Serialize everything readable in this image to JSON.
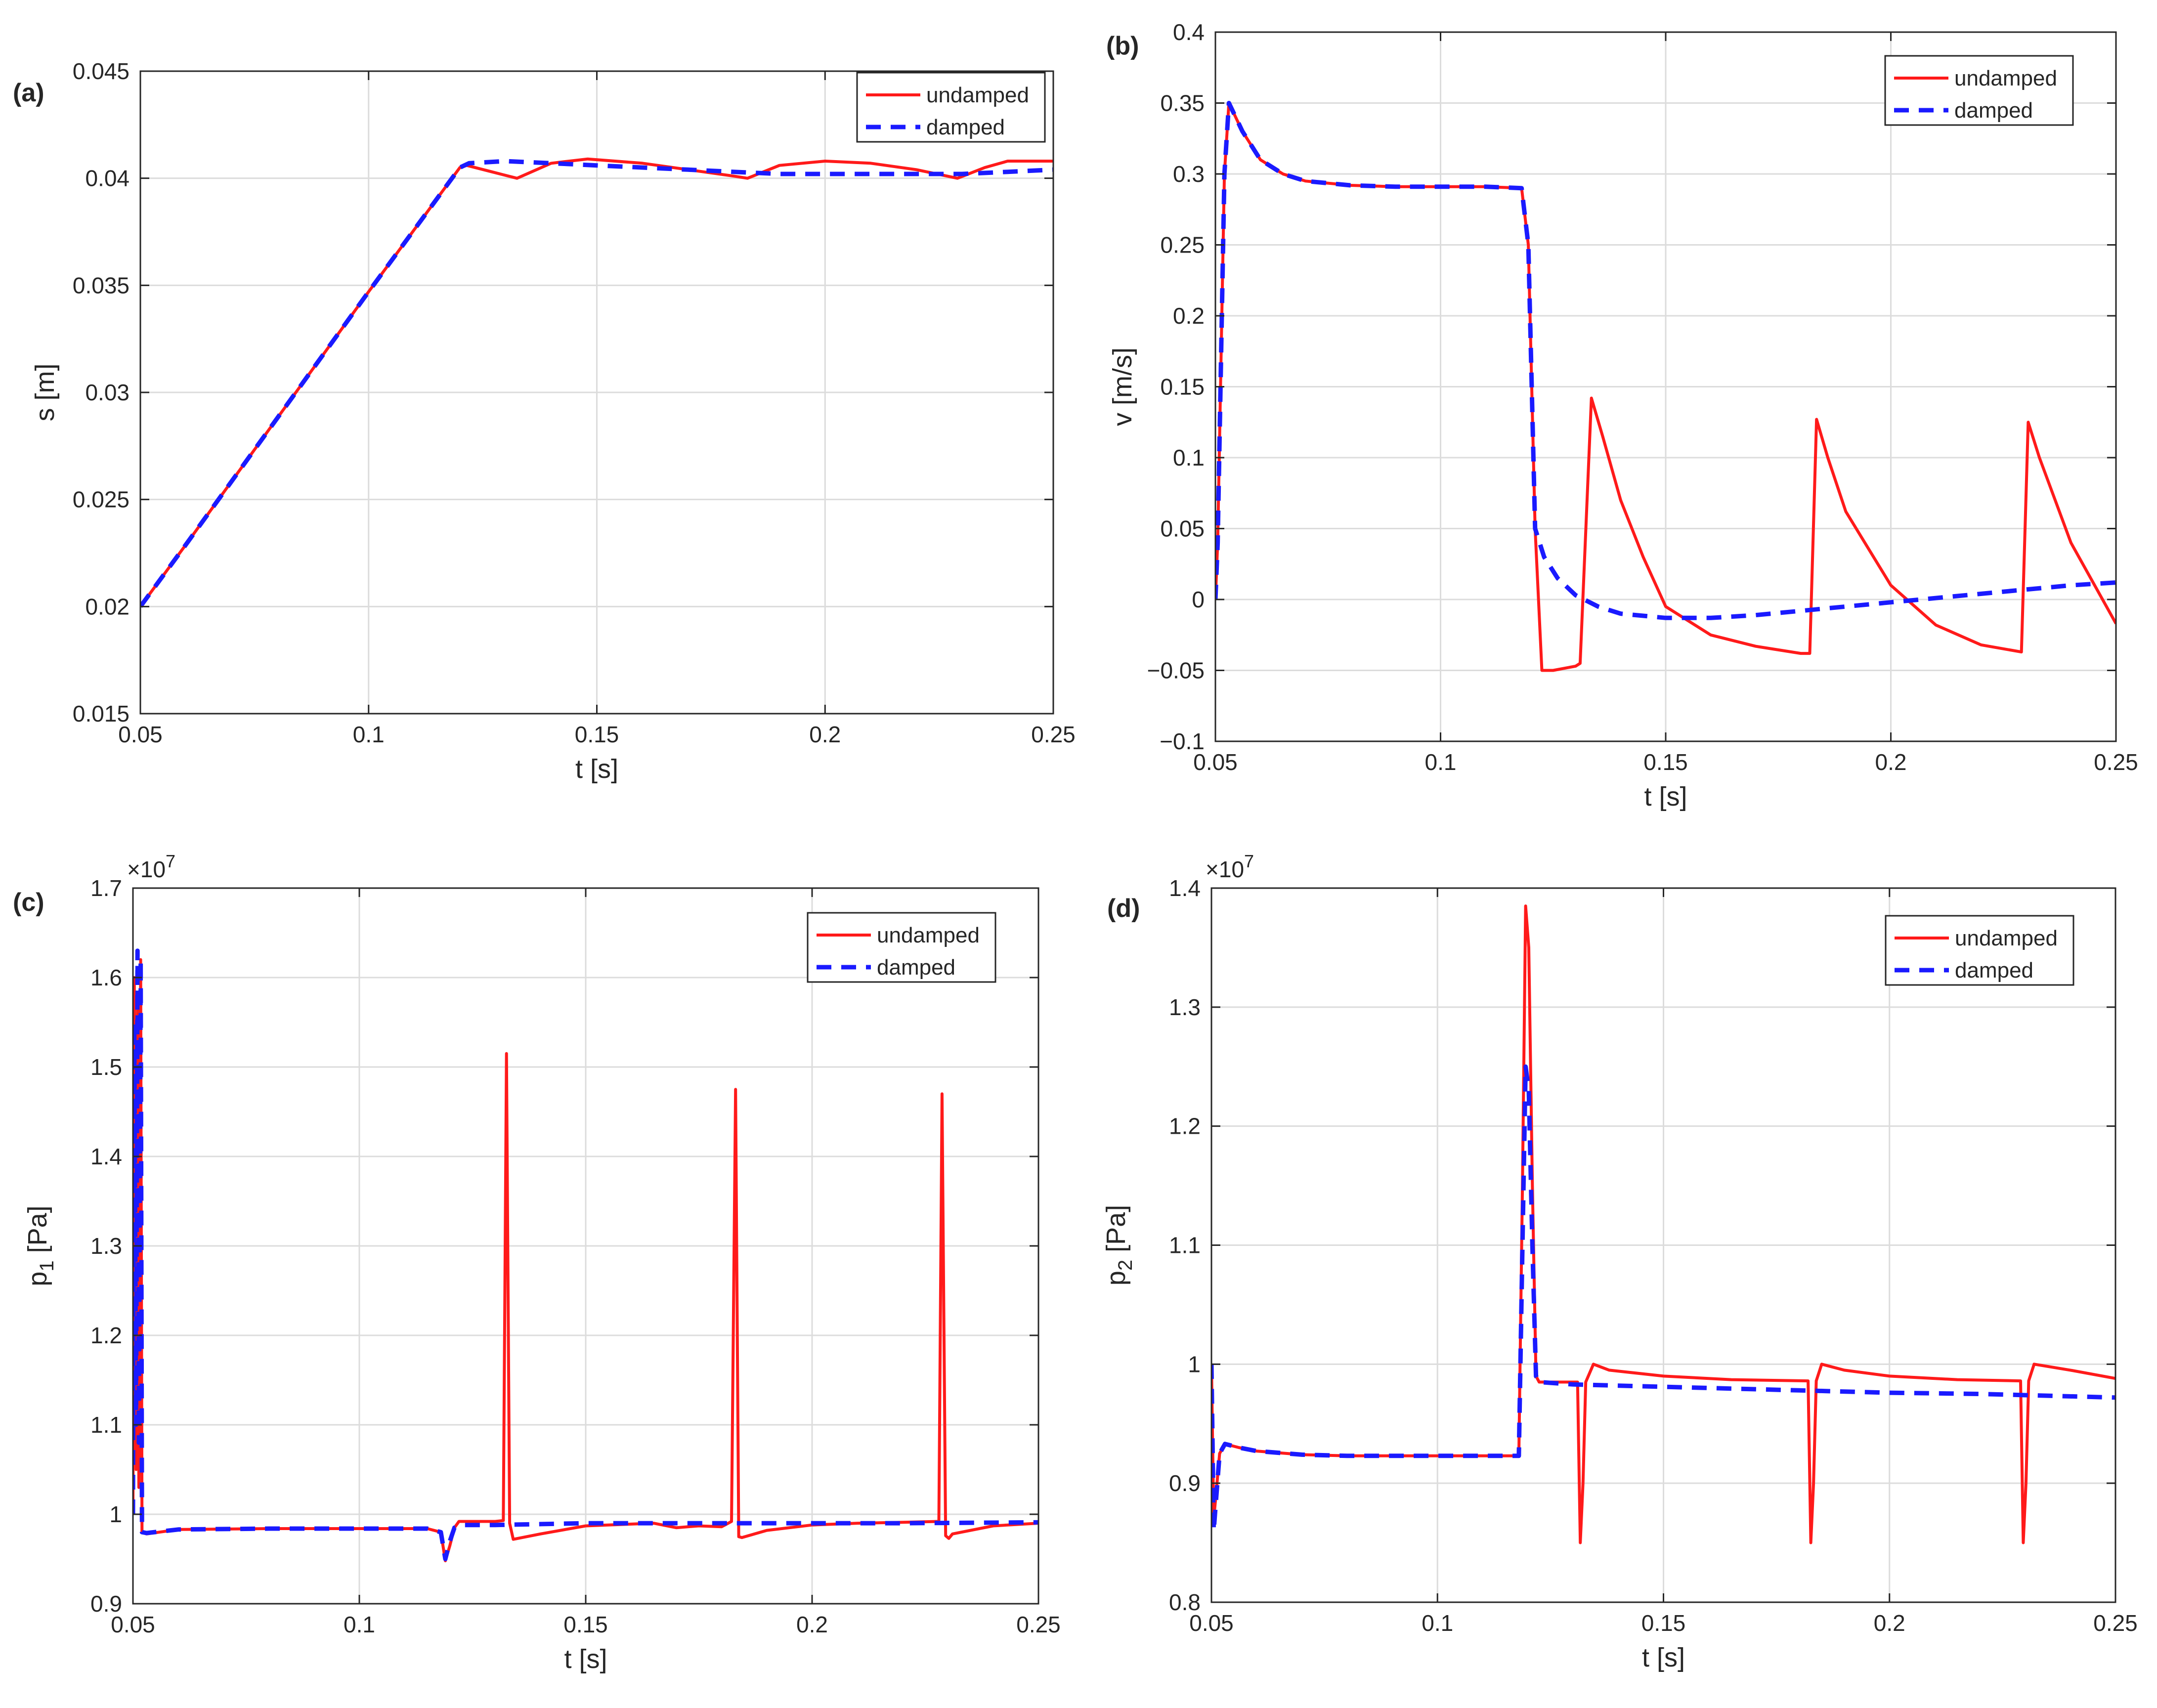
{
  "figure": {
    "colors": {
      "undamped": "#ff1a1a",
      "damped": "#1a1aff",
      "axis": "#262626",
      "grid": "#dcdcdc"
    }
  },
  "chart_data": [
    {
      "id": "a",
      "type": "line",
      "panel_label": "(a)",
      "xlabel": "t [s]",
      "ylabel": "s [m]",
      "xlim": [
        0.05,
        0.25
      ],
      "ylim": [
        0.015,
        0.045
      ],
      "xticks": [
        0.05,
        0.1,
        0.15,
        0.2,
        0.25
      ],
      "xtick_labels": [
        "0.05",
        "0.1",
        "0.15",
        "0.2",
        "0.25"
      ],
      "yticks": [
        0.015,
        0.02,
        0.025,
        0.03,
        0.035,
        0.04,
        0.045
      ],
      "ytick_labels": [
        "0.015",
        "0.02",
        "0.025",
        "0.03",
        "0.035",
        "0.04",
        "0.045"
      ],
      "exponent_label": "",
      "grid": true,
      "legend": [
        "undamped",
        "damped"
      ],
      "series": [
        {
          "name": "undamped",
          "style": "solid",
          "color": "#ff1a1a",
          "x": [
            0.05,
            0.06,
            0.08,
            0.1,
            0.12,
            0.1215,
            0.127,
            0.1325,
            0.14,
            0.148,
            0.16,
            0.17,
            0.18,
            0.183,
            0.19,
            0.2,
            0.21,
            0.22,
            0.229,
            0.235,
            0.24,
            0.25
          ],
          "y": [
            0.02,
            0.0229,
            0.0288,
            0.0347,
            0.0405,
            0.0406,
            0.0403,
            0.04,
            0.0407,
            0.0409,
            0.0407,
            0.0404,
            0.0401,
            0.04,
            0.0406,
            0.0408,
            0.0407,
            0.0404,
            0.04,
            0.0405,
            0.0408,
            0.0408
          ]
        },
        {
          "name": "damped",
          "style": "dashed",
          "color": "#1a1aff",
          "x": [
            0.05,
            0.06,
            0.08,
            0.1,
            0.12,
            0.122,
            0.13,
            0.14,
            0.15,
            0.16,
            0.17,
            0.18,
            0.19,
            0.2,
            0.21,
            0.22,
            0.23,
            0.24,
            0.25
          ],
          "y": [
            0.02,
            0.0229,
            0.0288,
            0.0347,
            0.0405,
            0.0407,
            0.0408,
            0.0407,
            0.0406,
            0.0405,
            0.0404,
            0.0403,
            0.0402,
            0.0402,
            0.0402,
            0.0402,
            0.0402,
            0.0403,
            0.0404
          ]
        }
      ]
    },
    {
      "id": "b",
      "type": "line",
      "panel_label": "(b)",
      "xlabel": "t [s]",
      "ylabel": "v [m/s]",
      "xlim": [
        0.05,
        0.25
      ],
      "ylim": [
        -0.1,
        0.4
      ],
      "xticks": [
        0.05,
        0.1,
        0.15,
        0.2,
        0.25
      ],
      "xtick_labels": [
        "0.05",
        "0.1",
        "0.15",
        "0.2",
        "0.25"
      ],
      "yticks": [
        -0.1,
        -0.05,
        0,
        0.05,
        0.1,
        0.15,
        0.2,
        0.25,
        0.3,
        0.35,
        0.4
      ],
      "ytick_labels": [
        "−0.1",
        "−0.05",
        "0",
        "0.05",
        "0.1",
        "0.15",
        "0.2",
        "0.25",
        "0.3",
        "0.35",
        "0.4"
      ],
      "exponent_label": "",
      "grid": true,
      "legend": [
        "undamped",
        "damped"
      ],
      "series": [
        {
          "name": "undamped",
          "style": "solid",
          "color": "#ff1a1a",
          "x": [
            0.05,
            0.0505,
            0.052,
            0.053,
            0.056,
            0.06,
            0.065,
            0.07,
            0.08,
            0.09,
            0.1,
            0.11,
            0.118,
            0.1195,
            0.121,
            0.1225,
            0.125,
            0.13,
            0.131,
            0.1335,
            0.136,
            0.14,
            0.145,
            0.15,
            0.16,
            0.17,
            0.18,
            0.182,
            0.1835,
            0.186,
            0.19,
            0.2,
            0.21,
            0.22,
            0.229,
            0.2305,
            0.233,
            0.24,
            0.25
          ],
          "y": [
            0.0,
            0.04,
            0.3,
            0.35,
            0.33,
            0.31,
            0.3,
            0.295,
            0.292,
            0.291,
            0.291,
            0.291,
            0.29,
            0.25,
            0.05,
            -0.05,
            -0.05,
            -0.047,
            -0.045,
            0.142,
            0.115,
            0.07,
            0.03,
            -0.005,
            -0.025,
            -0.033,
            -0.038,
            -0.038,
            0.127,
            0.1,
            0.062,
            0.01,
            -0.018,
            -0.032,
            -0.037,
            0.125,
            0.1,
            0.04,
            -0.017
          ]
        },
        {
          "name": "damped",
          "style": "dashed",
          "color": "#1a1aff",
          "x": [
            0.05,
            0.0505,
            0.052,
            0.053,
            0.056,
            0.06,
            0.065,
            0.07,
            0.08,
            0.09,
            0.1,
            0.11,
            0.118,
            0.1195,
            0.121,
            0.123,
            0.126,
            0.13,
            0.135,
            0.14,
            0.15,
            0.16,
            0.17,
            0.18,
            0.19,
            0.2,
            0.21,
            0.22,
            0.23,
            0.24,
            0.25
          ],
          "y": [
            0.0,
            0.04,
            0.3,
            0.35,
            0.33,
            0.31,
            0.3,
            0.295,
            0.292,
            0.291,
            0.291,
            0.291,
            0.29,
            0.25,
            0.05,
            0.03,
            0.015,
            0.003,
            -0.005,
            -0.01,
            -0.013,
            -0.013,
            -0.011,
            -0.008,
            -0.005,
            -0.002,
            0.001,
            0.004,
            0.007,
            0.01,
            0.012
          ]
        }
      ]
    },
    {
      "id": "c",
      "type": "line",
      "panel_label": "(c)",
      "xlabel": "t [s]",
      "ylabel": "p",
      "ylabel_sub": "1",
      "ylabel_unit": " [Pa]",
      "xlim": [
        0.05,
        0.25
      ],
      "ylim": [
        9000000,
        17000000
      ],
      "xticks": [
        0.05,
        0.1,
        0.15,
        0.2,
        0.25
      ],
      "xtick_labels": [
        "0.05",
        "0.1",
        "0.15",
        "0.2",
        "0.25"
      ],
      "yticks": [
        9000000,
        10000000,
        11000000,
        12000000,
        13000000,
        14000000,
        15000000,
        16000000,
        17000000
      ],
      "ytick_labels": [
        "0.9",
        "1",
        "1.1",
        "1.2",
        "1.3",
        "1.4",
        "1.5",
        "1.6",
        "1.7"
      ],
      "exponent_label": "×10",
      "exponent_power": "7",
      "grid": true,
      "legend": [
        "undamped",
        "damped"
      ],
      "series": [
        {
          "name": "undamped",
          "style": "solid",
          "color": "#ff1a1a",
          "x": [
            0.05,
            0.0503,
            0.0507,
            0.051,
            0.0513,
            0.0517,
            0.052,
            0.053,
            0.06,
            0.08,
            0.1,
            0.115,
            0.118,
            0.119,
            0.12,
            0.121,
            0.122,
            0.125,
            0.13,
            0.1318,
            0.1325,
            0.1332,
            0.134,
            0.14,
            0.15,
            0.165,
            0.17,
            0.175,
            0.18,
            0.1822,
            0.1831,
            0.1838,
            0.1845,
            0.19,
            0.2,
            0.21,
            0.22,
            0.228,
            0.2287,
            0.2295,
            0.2302,
            0.231,
            0.24,
            0.25
          ],
          "y": [
            10000000,
            16000000,
            10500000,
            15800000,
            10300000,
            16200000,
            9800000,
            9780000,
            9830000,
            9840000,
            9840000,
            9840000,
            9800000,
            9480000,
            9650000,
            9850000,
            9920000,
            9920000,
            9920000,
            9930000,
            15150000,
            9900000,
            9720000,
            9780000,
            9870000,
            9900000,
            9850000,
            9870000,
            9860000,
            9920000,
            14750000,
            9750000,
            9740000,
            9820000,
            9880000,
            9900000,
            9910000,
            9920000,
            14700000,
            9760000,
            9730000,
            9780000,
            9870000,
            9900000
          ]
        },
        {
          "name": "damped",
          "style": "dashed",
          "color": "#1a1aff",
          "x": [
            0.05,
            0.0503,
            0.0507,
            0.051,
            0.0513,
            0.0517,
            0.052,
            0.053,
            0.06,
            0.08,
            0.1,
            0.115,
            0.118,
            0.119,
            0.12,
            0.121,
            0.123,
            0.13,
            0.14,
            0.15,
            0.16,
            0.18,
            0.2,
            0.22,
            0.25
          ],
          "y": [
            10000000,
            15500000,
            11000000,
            16300000,
            10800000,
            16200000,
            9800000,
            9790000,
            9830000,
            9840000,
            9840000,
            9840000,
            9800000,
            9500000,
            9700000,
            9850000,
            9880000,
            9880000,
            9890000,
            9900000,
            9900000,
            9900000,
            9900000,
            9900000,
            9910000
          ]
        }
      ]
    },
    {
      "id": "d",
      "type": "line",
      "panel_label": "(d)",
      "xlabel": "t [s]",
      "ylabel": "p",
      "ylabel_sub": "2",
      "ylabel_unit": " [Pa]",
      "xlim": [
        0.05,
        0.25
      ],
      "ylim": [
        8000000,
        14000000
      ],
      "xticks": [
        0.05,
        0.1,
        0.15,
        0.2,
        0.25
      ],
      "xtick_labels": [
        "0.05",
        "0.1",
        "0.15",
        "0.2",
        "0.25"
      ],
      "yticks": [
        8000000,
        9000000,
        10000000,
        11000000,
        12000000,
        13000000,
        14000000
      ],
      "ytick_labels": [
        "0.8",
        "0.9",
        "1",
        "1.1",
        "1.2",
        "1.3",
        "1.4"
      ],
      "exponent_label": "×10",
      "exponent_power": "7",
      "grid": true,
      "legend": [
        "undamped",
        "damped"
      ],
      "series": [
        {
          "name": "undamped",
          "style": "solid",
          "color": "#ff1a1a",
          "x": [
            0.05,
            0.0505,
            0.051,
            0.0518,
            0.053,
            0.056,
            0.06,
            0.07,
            0.08,
            0.1,
            0.118,
            0.1188,
            0.1195,
            0.1202,
            0.121,
            0.1218,
            0.1225,
            0.125,
            0.131,
            0.1316,
            0.1322,
            0.1328,
            0.1345,
            0.138,
            0.15,
            0.165,
            0.182,
            0.1826,
            0.1832,
            0.1838,
            0.185,
            0.19,
            0.2,
            0.215,
            0.229,
            0.2296,
            0.2302,
            0.2308,
            0.232,
            0.24,
            0.25
          ],
          "y": [
            10000000,
            8700000,
            8900000,
            9250000,
            9330000,
            9300000,
            9270000,
            9240000,
            9230000,
            9230000,
            9230000,
            11500000,
            13850000,
            13500000,
            11500000,
            9900000,
            9850000,
            9850000,
            9850000,
            8500000,
            9000000,
            9850000,
            10000000,
            9950000,
            9900000,
            9870000,
            9860000,
            8500000,
            9000000,
            9860000,
            10000000,
            9950000,
            9900000,
            9870000,
            9860000,
            8500000,
            9000000,
            9860000,
            10000000,
            9950000,
            9880000
          ]
        },
        {
          "name": "damped",
          "style": "dashed",
          "color": "#1a1aff",
          "x": [
            0.05,
            0.0505,
            0.051,
            0.0518,
            0.053,
            0.056,
            0.06,
            0.07,
            0.08,
            0.1,
            0.118,
            0.1188,
            0.1195,
            0.1202,
            0.121,
            0.1218,
            0.1225,
            0.13,
            0.14,
            0.16,
            0.18,
            0.2,
            0.22,
            0.25
          ],
          "y": [
            10000000,
            8600000,
            8850000,
            9250000,
            9330000,
            9300000,
            9270000,
            9240000,
            9230000,
            9230000,
            9230000,
            11000000,
            12500000,
            12300000,
            11000000,
            9900000,
            9850000,
            9830000,
            9820000,
            9800000,
            9780000,
            9760000,
            9750000,
            9720000
          ]
        }
      ]
    }
  ]
}
